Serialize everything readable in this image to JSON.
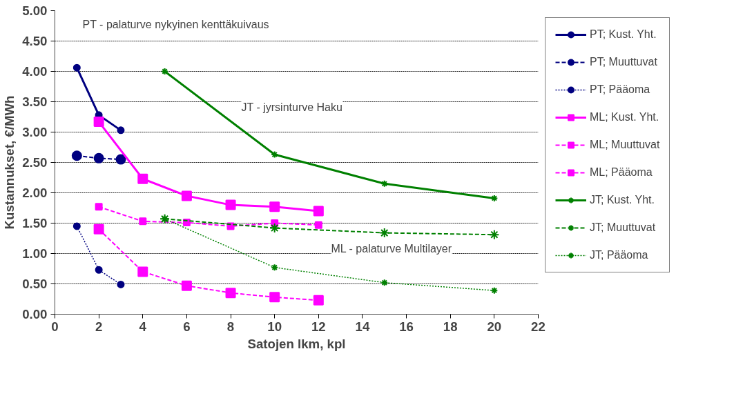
{
  "chart_data": {
    "type": "line",
    "xlabel": "Satojen lkm, kpl",
    "ylabel": "Kustannukset, €/MWh",
    "xlim": [
      0,
      22
    ],
    "xticks": [
      0,
      2,
      4,
      6,
      8,
      10,
      12,
      14,
      16,
      18,
      20,
      22
    ],
    "ylim": [
      0,
      5
    ],
    "yticks": [
      {
        "value": 0,
        "label": "0.00"
      },
      {
        "value": 0.5,
        "label": "0.50"
      },
      {
        "value": 1,
        "label": "1.00"
      },
      {
        "value": 1.5,
        "label": "1.50"
      },
      {
        "value": 2,
        "label": "2.00"
      },
      {
        "value": 2.5,
        "label": "2.50"
      },
      {
        "value": 3,
        "label": "3.00"
      },
      {
        "value": 3.5,
        "label": "3.50"
      },
      {
        "value": 4,
        "label": "4.00"
      },
      {
        "value": 4.5,
        "label": "4.50"
      },
      {
        "value": 5,
        "label": "5.00"
      }
    ],
    "grid": "y",
    "legend": "right",
    "annotations": [
      "PT - palaturve nykyinen kenttäkuivaus",
      "JT - jyrsinturve Haku",
      "ML - palaturve Multilayer"
    ],
    "series": [
      {
        "name": "PT; Kust. Yht.",
        "color": "#000080",
        "marker": "circle",
        "line_style": "solid",
        "x": [
          1,
          2,
          3
        ],
        "values": [
          4.06,
          3.28,
          3.03
        ]
      },
      {
        "name": "PT; Muuttuvat",
        "color": "#000080",
        "marker": "circle",
        "line_style": "dashed",
        "x": [
          1,
          2,
          3
        ],
        "values": [
          2.61,
          2.57,
          2.55
        ]
      },
      {
        "name": "PT; Pääoma",
        "color": "#000080",
        "marker": "circle",
        "line_style": "dotted",
        "x": [
          1,
          2,
          3
        ],
        "values": [
          1.45,
          0.73,
          0.49
        ]
      },
      {
        "name": "ML; Kust. Yht.",
        "color": "#ff00ff",
        "marker": "square",
        "line_style": "solid",
        "x": [
          2,
          4,
          6,
          8,
          10,
          12
        ],
        "values": [
          3.17,
          2.23,
          1.95,
          1.8,
          1.77,
          1.7
        ]
      },
      {
        "name": "ML; Muuttuvat",
        "color": "#ff00ff",
        "marker": "square",
        "line_style": "dashed",
        "x": [
          2,
          4,
          6,
          8,
          10,
          12
        ],
        "values": [
          1.77,
          1.53,
          1.51,
          1.45,
          1.5,
          1.47
        ]
      },
      {
        "name": "ML; Pääoma",
        "color": "#ff00ff",
        "marker": "square",
        "line_style": "dashed",
        "x": [
          2,
          4,
          6,
          8,
          10,
          12
        ],
        "values": [
          1.4,
          0.7,
          0.47,
          0.35,
          0.28,
          0.23
        ]
      },
      {
        "name": "JT; Kust. Yht.",
        "color": "#008000",
        "marker": "cross",
        "line_style": "solid",
        "x": [
          5,
          10,
          15,
          20
        ],
        "values": [
          4.0,
          2.63,
          2.15,
          1.91
        ]
      },
      {
        "name": "JT; Muuttuvat",
        "color": "#008000",
        "marker": "cross",
        "line_style": "dashed",
        "x": [
          5,
          10,
          15,
          20
        ],
        "values": [
          1.57,
          1.42,
          1.34,
          1.31
        ]
      },
      {
        "name": "JT; Pääoma",
        "color": "#008000",
        "marker": "cross",
        "line_style": "dotted",
        "x": [
          5,
          10,
          15,
          20
        ],
        "values": [
          1.57,
          0.77,
          0.52,
          0.39
        ]
      }
    ]
  }
}
